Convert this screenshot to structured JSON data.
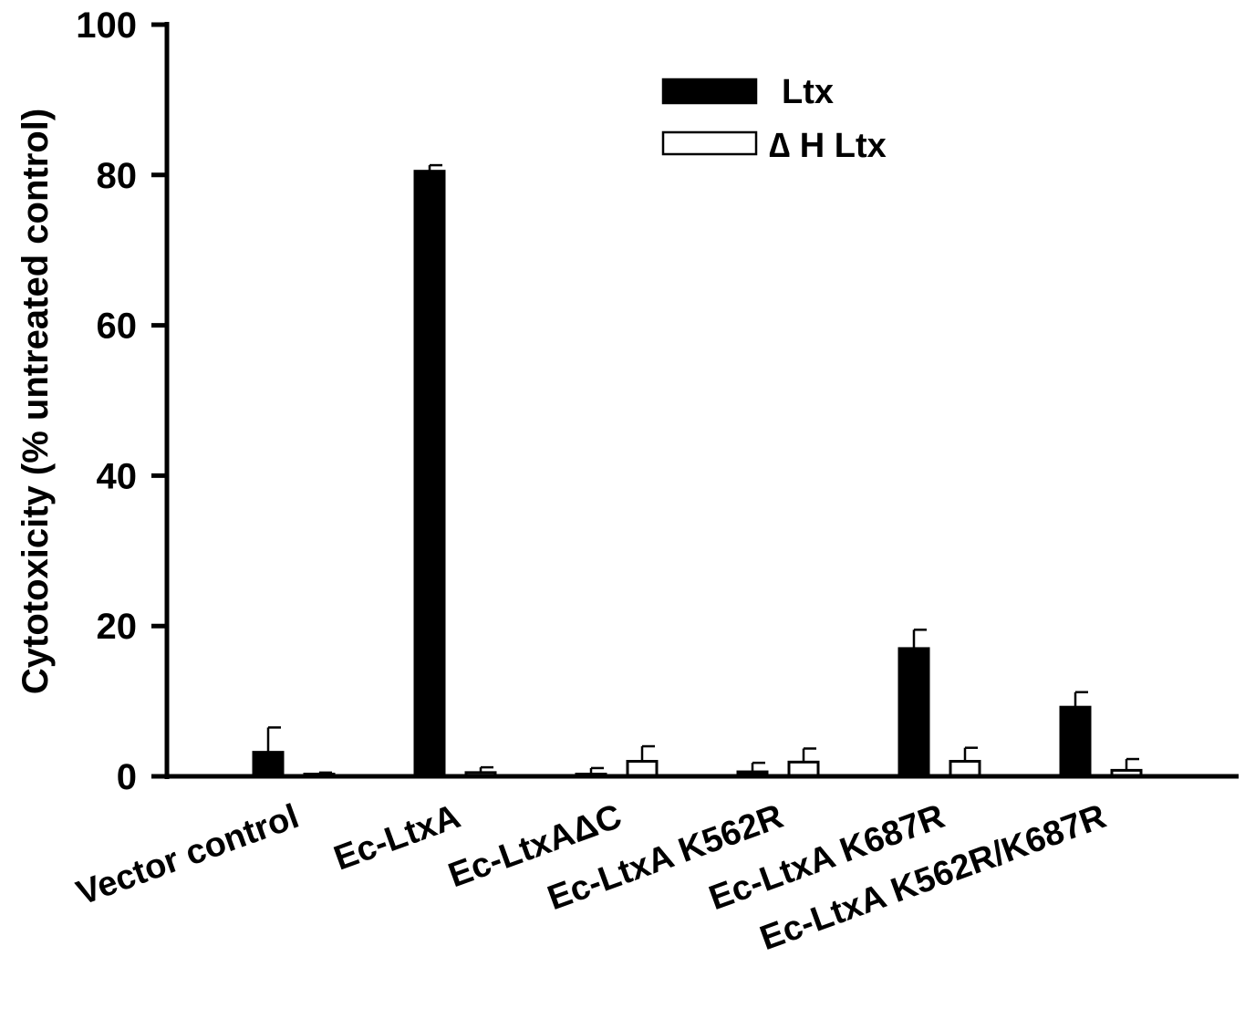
{
  "chart_data": {
    "type": "bar",
    "title": "",
    "xlabel": "",
    "ylabel": "Cytotoxicity (% untreated control)",
    "ylim": [
      0,
      100
    ],
    "yticks": [
      "0",
      "20",
      "40",
      "60",
      "80",
      "100"
    ],
    "grid": false,
    "legend_position": "top-right",
    "categories": [
      "Vector control",
      "Ec-LtxA",
      "Ec-LtxAΔC",
      "Ec-LtxA K562R",
      "Ec-LtxA K687R",
      "Ec-LtxA K562R/K687R"
    ],
    "series": [
      {
        "name": "Ltx",
        "fill": "#000000",
        "values": [
          3.2,
          80.5,
          0.3,
          0.6,
          17.0,
          9.2
        ],
        "errors": [
          3.3,
          0.8,
          0.8,
          1.2,
          2.5,
          2.0
        ]
      },
      {
        "name": "∆ H Ltx",
        "fill": "#ffffff",
        "values": [
          0.3,
          0.5,
          2.0,
          1.9,
          2.0,
          0.8
        ],
        "errors": [
          0.2,
          0.7,
          2.0,
          1.8,
          1.8,
          1.5
        ]
      }
    ]
  }
}
